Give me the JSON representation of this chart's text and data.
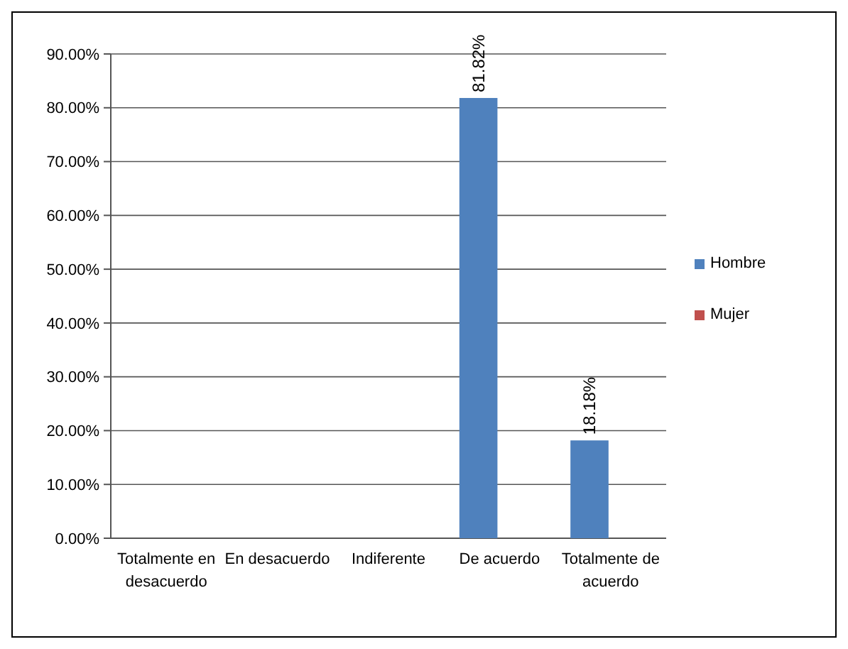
{
  "chart_data": {
    "type": "bar",
    "categories": [
      "Totalmente en desacuerdo",
      "En desacuerdo",
      "Indiferente",
      "De acuerdo",
      "Totalmente de acuerdo"
    ],
    "series": [
      {
        "name": "Hombre",
        "color": "#4f81bd",
        "values": [
          0,
          0,
          0,
          81.82,
          18.18
        ],
        "value_labels": [
          null,
          null,
          null,
          "81.82%",
          "18.18%"
        ]
      },
      {
        "name": "Mujer",
        "color": "#c0504d",
        "values": [
          0,
          0,
          0,
          0,
          0
        ]
      }
    ],
    "ylim": [
      0,
      90
    ],
    "yticks": [
      {
        "value": 0,
        "label": "0.00%"
      },
      {
        "value": 10,
        "label": "10.00%"
      },
      {
        "value": 20,
        "label": "20.00%"
      },
      {
        "value": 30,
        "label": "30.00%"
      },
      {
        "value": 40,
        "label": "40.00%"
      },
      {
        "value": 50,
        "label": "50.00%"
      },
      {
        "value": 60,
        "label": "60.00%"
      },
      {
        "value": 70,
        "label": "70.00%"
      },
      {
        "value": 80,
        "label": "80.00%"
      },
      {
        "value": 90,
        "label": "90.00%"
      }
    ],
    "grid": "y",
    "legend": "right"
  }
}
